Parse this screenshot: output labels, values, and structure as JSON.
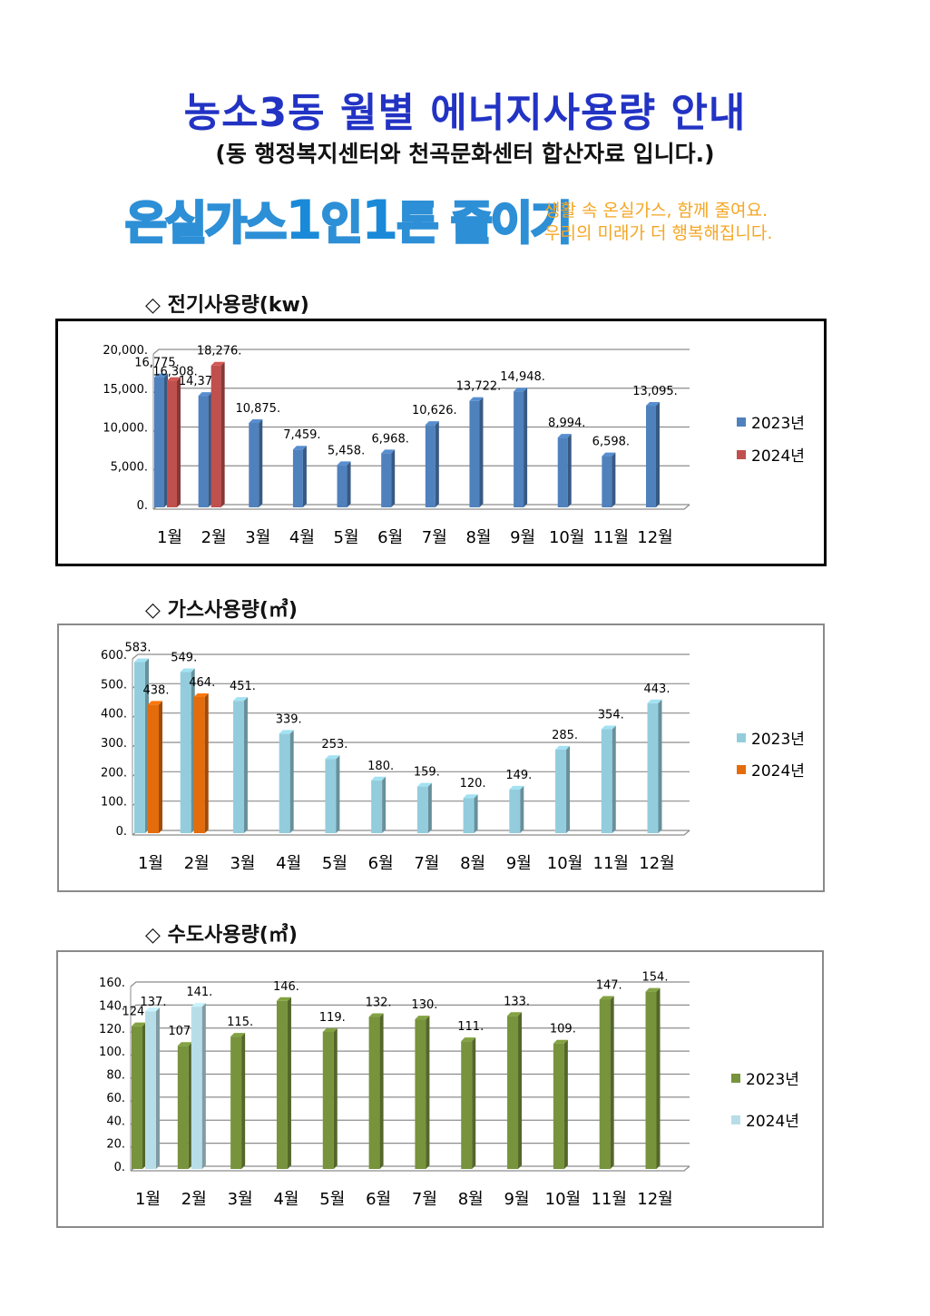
{
  "title": "농소3동 월별 에너지사용량 안내",
  "subtitle": "(동 행정복지센터와 천곡문화센터 합산자료 입니다.)",
  "banner": {
    "slogan_part1": "온실가스",
    "slogan_one_a": "1",
    "slogan_part2": "인",
    "slogan_one_b": "1",
    "slogan_part3": "톤 줄이기",
    "tagline_line1": "생활 속 온실가스, 함께 줄여요.",
    "tagline_line2": "우리의 미래가 더 행복해집니다."
  },
  "sections": [
    {
      "heading": "◇ 전기사용량(kw)"
    },
    {
      "heading": "◇ 가스사용량(㎥)"
    },
    {
      "heading": "◇ 수도사용량(㎥)"
    }
  ],
  "chart_data": [
    {
      "type": "bar",
      "title": "",
      "categories": [
        "1월",
        "2월",
        "3월",
        "4월",
        "5월",
        "6월",
        "7월",
        "8월",
        "9월",
        "10월",
        "11월",
        "12월"
      ],
      "ylim": [
        0,
        20000
      ],
      "yticks": [
        "0.",
        "5,000.",
        "10,000.",
        "15,000.",
        "20,000."
      ],
      "ytick_values": [
        0,
        5000,
        10000,
        15000,
        20000
      ],
      "grid": true,
      "legend": "right",
      "series": [
        {
          "name": "2023년",
          "color": "#4f81bd",
          "values": [
            16775,
            14376,
            10875,
            7459,
            5458,
            6968,
            10626,
            13722,
            14948,
            8994,
            6598,
            13095
          ]
        },
        {
          "name": "2024년",
          "color": "#c0504d",
          "values": [
            16308,
            18276,
            null,
            null,
            null,
            null,
            null,
            null,
            null,
            null,
            null,
            null
          ]
        }
      ]
    },
    {
      "type": "bar",
      "title": "",
      "categories": [
        "1월",
        "2월",
        "3월",
        "4월",
        "5월",
        "6월",
        "7월",
        "8월",
        "9월",
        "10월",
        "11월",
        "12월"
      ],
      "ylim": [
        0,
        600
      ],
      "yticks": [
        "0.",
        "100.",
        "200.",
        "300.",
        "400.",
        "500.",
        "600."
      ],
      "ytick_values": [
        0,
        100,
        200,
        300,
        400,
        500,
        600
      ],
      "grid": true,
      "legend": "right",
      "series": [
        {
          "name": "2023년",
          "color": "#93cddd",
          "values": [
            583,
            549,
            451,
            339,
            253,
            180,
            159,
            120,
            149,
            285,
            354,
            443
          ]
        },
        {
          "name": "2024년",
          "color": "#e46c0a",
          "values": [
            438,
            464,
            null,
            null,
            null,
            null,
            null,
            null,
            null,
            null,
            null,
            null
          ]
        }
      ]
    },
    {
      "type": "bar",
      "title": "",
      "categories": [
        "1월",
        "2월",
        "3월",
        "4월",
        "5월",
        "6월",
        "7월",
        "8월",
        "9월",
        "10월",
        "11월",
        "12월"
      ],
      "ylim": [
        0,
        160
      ],
      "yticks": [
        "0.",
        "20.",
        "40.",
        "60.",
        "80.",
        "100.",
        "120.",
        "140.",
        "160."
      ],
      "ytick_values": [
        0,
        20,
        40,
        60,
        80,
        100,
        120,
        140,
        160
      ],
      "grid": true,
      "legend": "right",
      "series": [
        {
          "name": "2023년",
          "color": "#77933c",
          "values": [
            124,
            107,
            115,
            146,
            119,
            132,
            130,
            111,
            133,
            109,
            147,
            154
          ]
        },
        {
          "name": "2024년",
          "color": "#b7dee8",
          "values": [
            137,
            141,
            null,
            null,
            null,
            null,
            null,
            null,
            null,
            null,
            null,
            null
          ]
        }
      ]
    }
  ]
}
